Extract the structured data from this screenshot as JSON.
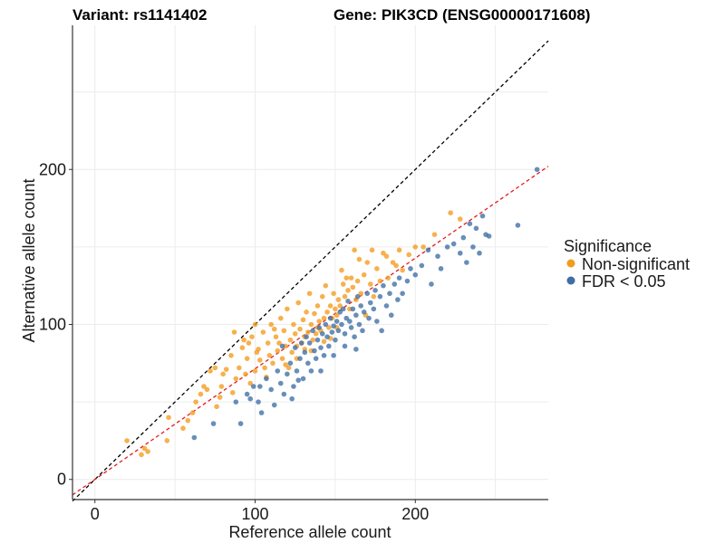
{
  "chart_data": {
    "type": "scatter",
    "title_left": "Variant: rs1141402",
    "title_right": "Gene: PIK3CD (ENSG00000171608)",
    "xlabel": "Reference allele count",
    "ylabel": "Alternative allele count",
    "xlim": [
      -14,
      283
    ],
    "ylim": [
      -13,
      293
    ],
    "xticks": [
      0,
      100,
      200
    ],
    "yticks": [
      0,
      100,
      200
    ],
    "grid": true,
    "legend": {
      "title": "Significance",
      "position": "right",
      "entries": [
        {
          "name": "Non-significant",
          "color": "#F39B1C"
        },
        {
          "name": "FDR < 0.05",
          "color": "#3E6EA5"
        }
      ]
    },
    "reference_lines": [
      {
        "name": "identity",
        "slope": 1,
        "intercept": 0,
        "color": "#000000",
        "dash": true
      },
      {
        "name": "fit",
        "slope": 0.714,
        "intercept": 0,
        "color": "#E41A1C",
        "dash": true
      }
    ],
    "series": [
      {
        "name": "Non-significant",
        "color": "#F39B1C",
        "points": [
          [
            20,
            25
          ],
          [
            29,
            16
          ],
          [
            31,
            20
          ],
          [
            33,
            18
          ],
          [
            45,
            25
          ],
          [
            46,
            40
          ],
          [
            55,
            33
          ],
          [
            58,
            38
          ],
          [
            61,
            43
          ],
          [
            63,
            50
          ],
          [
            66,
            55
          ],
          [
            68,
            60
          ],
          [
            70,
            58
          ],
          [
            72,
            70
          ],
          [
            75,
            72
          ],
          [
            76,
            47
          ],
          [
            78,
            53
          ],
          [
            79,
            60
          ],
          [
            80,
            68
          ],
          [
            82,
            71
          ],
          [
            85,
            80
          ],
          [
            86,
            56
          ],
          [
            88,
            65
          ],
          [
            90,
            72
          ],
          [
            92,
            85
          ],
          [
            93,
            90
          ],
          [
            95,
            78
          ],
          [
            96,
            88
          ],
          [
            97,
            62
          ],
          [
            98,
            92
          ],
          [
            100,
            100
          ],
          [
            100,
            70
          ],
          [
            102,
            84
          ],
          [
            103,
            77
          ],
          [
            105,
            95
          ],
          [
            106,
            72
          ],
          [
            108,
            88
          ],
          [
            109,
            80
          ],
          [
            110,
            100
          ],
          [
            111,
            75
          ],
          [
            113,
            92
          ],
          [
            114,
            83
          ],
          [
            116,
            104
          ],
          [
            117,
            78
          ],
          [
            118,
            96
          ],
          [
            119,
            86
          ],
          [
            120,
            110
          ],
          [
            121,
            72
          ],
          [
            122,
            90
          ],
          [
            123,
            82
          ],
          [
            124,
            100
          ],
          [
            125,
            94
          ],
          [
            126,
            86
          ],
          [
            127,
            114
          ],
          [
            128,
            97
          ],
          [
            129,
            88
          ],
          [
            130,
            103
          ],
          [
            131,
            84
          ],
          [
            132,
            108
          ],
          [
            133,
            95
          ],
          [
            134,
            120
          ],
          [
            135,
            100
          ],
          [
            136,
            90
          ],
          [
            137,
            107
          ],
          [
            138,
            94
          ],
          [
            139,
            112
          ],
          [
            140,
            102
          ],
          [
            141,
            96
          ],
          [
            142,
            118
          ],
          [
            143,
            104
          ],
          [
            144,
            125
          ],
          [
            145,
            108
          ],
          [
            146,
            98
          ],
          [
            147,
            112
          ],
          [
            148,
            104
          ],
          [
            149,
            120
          ],
          [
            150,
            110
          ],
          [
            151,
            98
          ],
          [
            152,
            116
          ],
          [
            153,
            112
          ],
          [
            154,
            135
          ],
          [
            155,
            126
          ],
          [
            156,
            118
          ],
          [
            158,
            122
          ],
          [
            159,
            110
          ],
          [
            160,
            130
          ],
          [
            161,
            124
          ],
          [
            162,
            148
          ],
          [
            163,
            116
          ],
          [
            164,
            128
          ],
          [
            166,
            120
          ],
          [
            168,
            132
          ],
          [
            169,
            106
          ],
          [
            170,
            140
          ],
          [
            172,
            126
          ],
          [
            174,
            118
          ],
          [
            176,
            136
          ],
          [
            178,
            128
          ],
          [
            180,
            146
          ],
          [
            183,
            130
          ],
          [
            186,
            140
          ],
          [
            188,
            138
          ],
          [
            190,
            148
          ],
          [
            192,
            135
          ],
          [
            196,
            145
          ],
          [
            200,
            150
          ],
          [
            205,
            150
          ],
          [
            212,
            158
          ],
          [
            222,
            172
          ],
          [
            228,
            168
          ],
          [
            87,
            95
          ],
          [
            94,
            68
          ],
          [
            101,
            82
          ],
          [
            107,
            66
          ],
          [
            112,
            97
          ],
          [
            115,
            88
          ],
          [
            119,
            74
          ],
          [
            126,
            78
          ],
          [
            131,
            92
          ],
          [
            135,
            83
          ],
          [
            139,
            98
          ],
          [
            143,
            89
          ],
          [
            147,
            91
          ],
          [
            151,
            106
          ],
          [
            157,
            130
          ],
          [
            165,
            142
          ],
          [
            173,
            148
          ],
          [
            182,
            144
          ]
        ]
      },
      {
        "name": "FDR < 0.05",
        "color": "#3E6EA5",
        "points": [
          [
            62,
            27
          ],
          [
            74,
            36
          ],
          [
            91,
            36
          ],
          [
            95,
            55
          ],
          [
            99,
            60
          ],
          [
            102,
            50
          ],
          [
            104,
            43
          ],
          [
            107,
            65
          ],
          [
            110,
            58
          ],
          [
            112,
            48
          ],
          [
            114,
            70
          ],
          [
            116,
            62
          ],
          [
            118,
            55
          ],
          [
            120,
            68
          ],
          [
            122,
            75
          ],
          [
            124,
            60
          ],
          [
            125,
            85
          ],
          [
            126,
            70
          ],
          [
            128,
            78
          ],
          [
            129,
            88
          ],
          [
            130,
            65
          ],
          [
            131,
            82
          ],
          [
            132,
            92
          ],
          [
            133,
            75
          ],
          [
            134,
            88
          ],
          [
            135,
            70
          ],
          [
            136,
            96
          ],
          [
            137,
            83
          ],
          [
            138,
            78
          ],
          [
            139,
            90
          ],
          [
            140,
            98
          ],
          [
            141,
            85
          ],
          [
            142,
            94
          ],
          [
            143,
            80
          ],
          [
            144,
            100
          ],
          [
            145,
            92
          ],
          [
            146,
            86
          ],
          [
            147,
            104
          ],
          [
            148,
            95
          ],
          [
            149,
            99
          ],
          [
            150,
            90
          ],
          [
            151,
            102
          ],
          [
            152,
            96
          ],
          [
            153,
            108
          ],
          [
            154,
            100
          ],
          [
            155,
            110
          ],
          [
            156,
            94
          ],
          [
            157,
            104
          ],
          [
            158,
            115
          ],
          [
            159,
            102
          ],
          [
            160,
            98
          ],
          [
            161,
            110
          ],
          [
            162,
            92
          ],
          [
            163,
            106
          ],
          [
            164,
            118
          ],
          [
            165,
            100
          ],
          [
            166,
            112
          ],
          [
            167,
            96
          ],
          [
            168,
            108
          ],
          [
            170,
            120
          ],
          [
            171,
            104
          ],
          [
            172,
            114
          ],
          [
            174,
            110
          ],
          [
            175,
            122
          ],
          [
            176,
            102
          ],
          [
            178,
            118
          ],
          [
            179,
            96
          ],
          [
            180,
            125
          ],
          [
            182,
            112
          ],
          [
            184,
            120
          ],
          [
            185,
            106
          ],
          [
            187,
            126
          ],
          [
            189,
            116
          ],
          [
            190,
            130
          ],
          [
            192,
            120
          ],
          [
            195,
            128
          ],
          [
            197,
            136
          ],
          [
            200,
            132
          ],
          [
            204,
            138
          ],
          [
            208,
            148
          ],
          [
            210,
            126
          ],
          [
            214,
            144
          ],
          [
            216,
            136
          ],
          [
            220,
            150
          ],
          [
            224,
            152
          ],
          [
            228,
            146
          ],
          [
            230,
            156
          ],
          [
            232,
            140
          ],
          [
            234,
            165
          ],
          [
            236,
            150
          ],
          [
            238,
            162
          ],
          [
            240,
            146
          ],
          [
            242,
            170
          ],
          [
            244,
            158
          ],
          [
            246,
            157
          ],
          [
            264,
            164
          ],
          [
            276,
            200
          ],
          [
            88,
            50
          ],
          [
            97,
            52
          ],
          [
            103,
            60
          ],
          [
            117,
            86
          ],
          [
            123,
            52
          ],
          [
            127,
            64
          ],
          [
            141,
            70
          ],
          [
            149,
            80
          ],
          [
            156,
            86
          ],
          [
            163,
            84
          ]
        ]
      }
    ]
  }
}
